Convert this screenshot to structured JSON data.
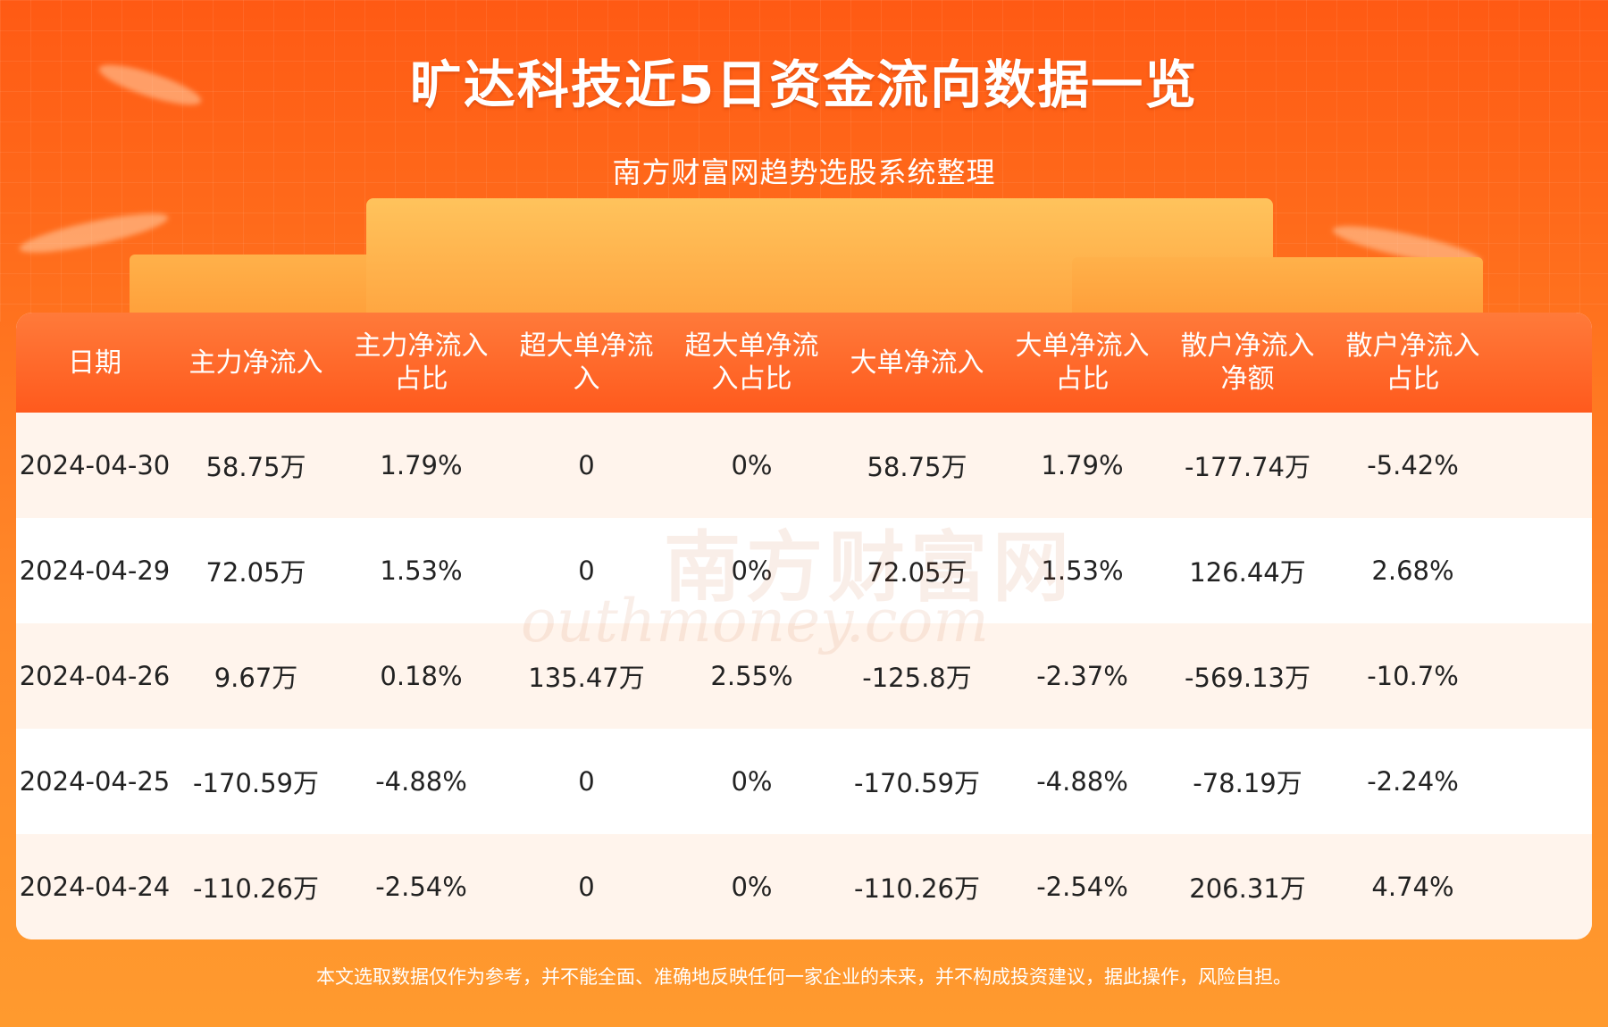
{
  "header": {
    "title": "旷达科技近5日资金流向数据一览",
    "subtitle": "南方财富网趋势选股系统整理"
  },
  "table": {
    "columns": [
      [
        "日期"
      ],
      [
        "主力净流入"
      ],
      [
        "主力净流入",
        "占比"
      ],
      [
        "超大单净流",
        "入"
      ],
      [
        "超大单净流",
        "入占比"
      ],
      [
        "大单净流入"
      ],
      [
        "大单净流入",
        "占比"
      ],
      [
        "散户净流入",
        "净额"
      ],
      [
        "散户净流入",
        "占比"
      ]
    ],
    "rows": [
      [
        "2024-04-30",
        "58.75万",
        "1.79%",
        "0",
        "0%",
        "58.75万",
        "1.79%",
        "-177.74万",
        "-5.42%"
      ],
      [
        "2024-04-29",
        "72.05万",
        "1.53%",
        "0",
        "0%",
        "72.05万",
        "1.53%",
        "126.44万",
        "2.68%"
      ],
      [
        "2024-04-26",
        "9.67万",
        "0.18%",
        "135.47万",
        "2.55%",
        "-125.8万",
        "-2.37%",
        "-569.13万",
        "-10.7%"
      ],
      [
        "2024-04-25",
        "-170.59万",
        "-4.88%",
        "0",
        "0%",
        "-170.59万",
        "-4.88%",
        "-78.19万",
        "-2.24%"
      ],
      [
        "2024-04-24",
        "-110.26万",
        "-2.54%",
        "0",
        "0%",
        "-110.26万",
        "-2.54%",
        "206.31万",
        "4.74%"
      ]
    ]
  },
  "watermark": {
    "cn": "南方财富网",
    "en": "outhmoney.com"
  },
  "footer": {
    "disclaimer": "本文选取数据仅作为参考，并不能全面、准确地反映任何一家企业的未来，并不构成投资建议，据此操作，风险自担。"
  }
}
